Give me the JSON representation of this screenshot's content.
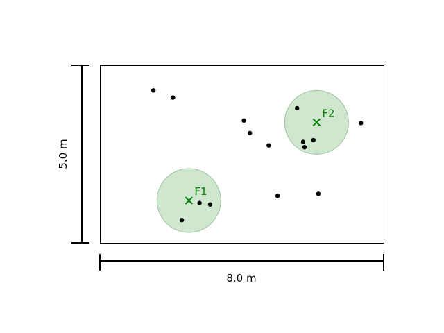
{
  "room": {
    "width_m": 8.0,
    "height_m": 5.0
  },
  "dimensions": {
    "width_label": "8.0 m",
    "height_label": "5.0 m"
  },
  "colors": {
    "coverage_fill": "#cfe6cf",
    "coverage_stroke": "#9dbf9d",
    "facility_marker": "#008000",
    "points": "#000000",
    "outline": "#000000"
  },
  "facilities": [
    {
      "label": "F1",
      "x": 2.5,
      "y": 1.2,
      "radius": 0.9
    },
    {
      "label": "F2",
      "x": 6.1,
      "y": 3.4,
      "radius": 0.9
    }
  ],
  "points": [
    {
      "x": 1.5,
      "y": 4.3
    },
    {
      "x": 2.05,
      "y": 4.1
    },
    {
      "x": 4.05,
      "y": 3.45
    },
    {
      "x": 4.22,
      "y": 3.1
    },
    {
      "x": 4.75,
      "y": 2.75
    },
    {
      "x": 5.55,
      "y": 3.8
    },
    {
      "x": 5.72,
      "y": 2.85
    },
    {
      "x": 5.76,
      "y": 2.7
    },
    {
      "x": 6.01,
      "y": 2.9
    },
    {
      "x": 7.35,
      "y": 3.38
    },
    {
      "x": 2.3,
      "y": 0.65
    },
    {
      "x": 2.8,
      "y": 1.13
    },
    {
      "x": 3.1,
      "y": 1.09
    },
    {
      "x": 5.0,
      "y": 1.33
    },
    {
      "x": 6.15,
      "y": 1.39
    }
  ]
}
